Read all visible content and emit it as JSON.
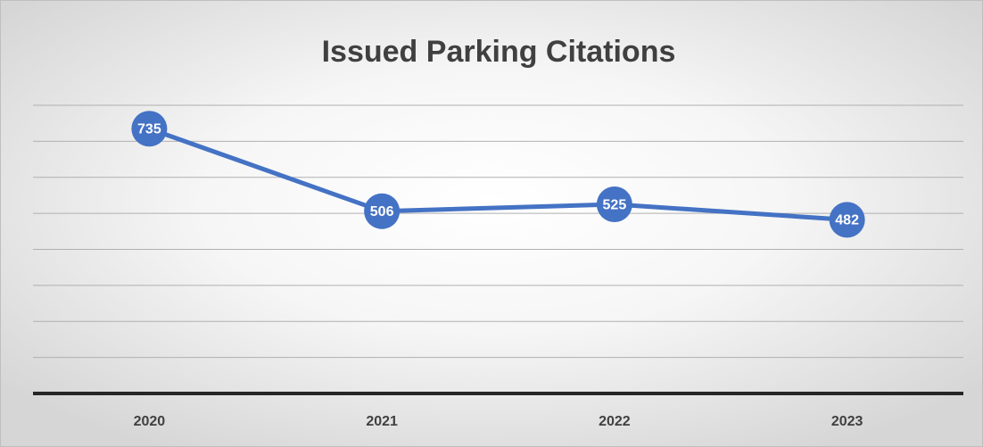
{
  "chart_data": {
    "type": "line",
    "title": "Issued Parking Citations",
    "categories": [
      "2020",
      "2021",
      "2022",
      "2023"
    ],
    "values": [
      735,
      506,
      525,
      482
    ],
    "color": "#4472c4",
    "ylim": [
      0,
      800
    ],
    "yticks": [
      0,
      100,
      200,
      300,
      400,
      500,
      600,
      700,
      800
    ],
    "grid": true
  }
}
